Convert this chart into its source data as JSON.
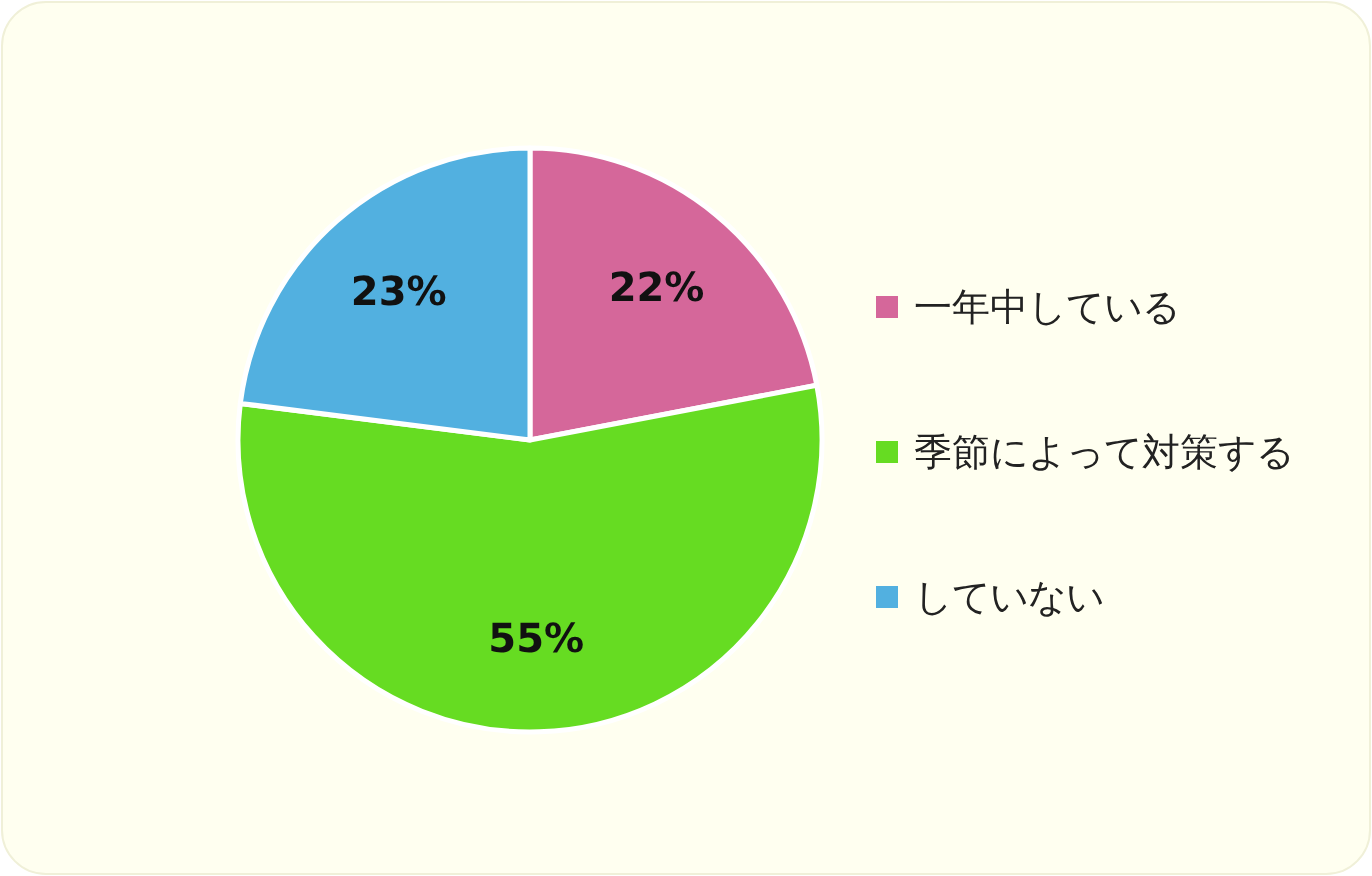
{
  "chart_data": {
    "type": "pie",
    "categories": [
      "一年中している",
      "季節によって対策する",
      "していない"
    ],
    "values": [
      22,
      55,
      23
    ],
    "colors": [
      "#d5679a",
      "#66dc22",
      "#52b0e0"
    ],
    "value_labels": [
      "22%",
      "55%",
      "23%"
    ],
    "legend": "right"
  }
}
